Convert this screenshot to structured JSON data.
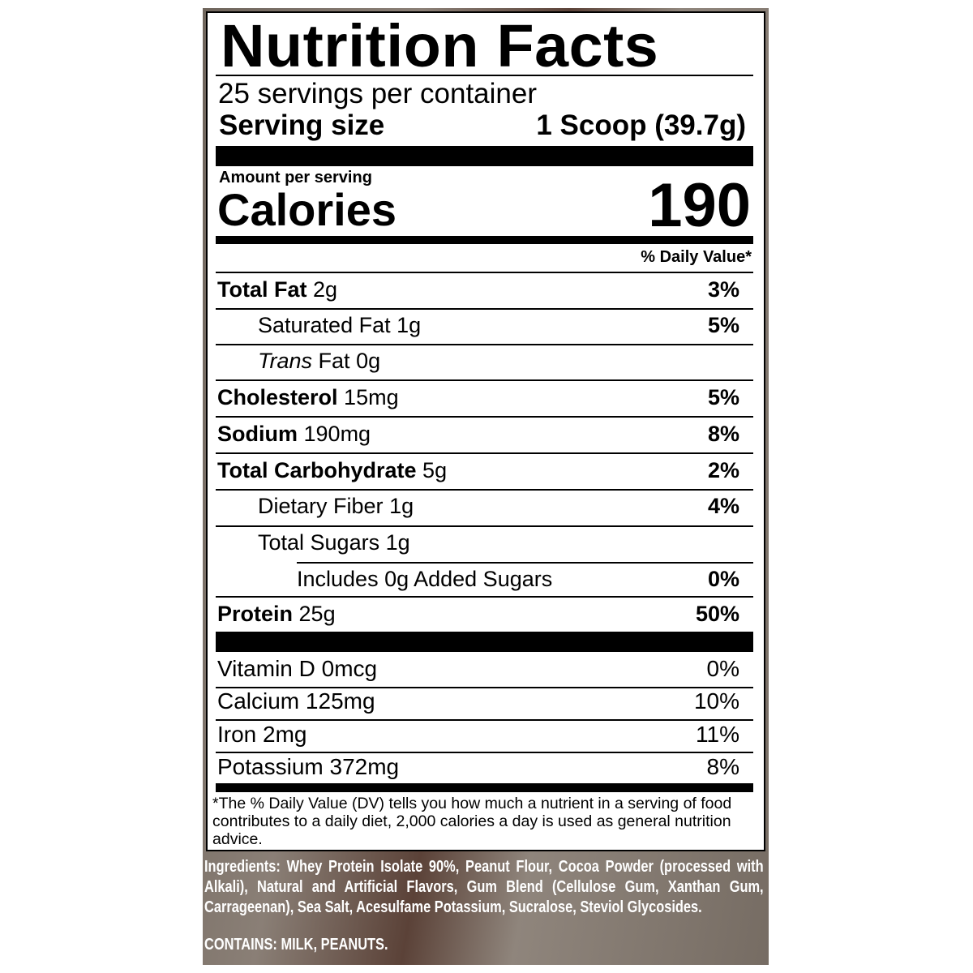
{
  "title": "Nutrition Facts",
  "servings_per_container": "25 servings per container",
  "serving_size_label": "Serving size",
  "serving_size_value": "1 Scoop (39.7g)",
  "amount_per_serving": "Amount per serving",
  "calories_label": "Calories",
  "calories_value": "190",
  "daily_value_header": "% Daily Value*",
  "nutrients": [
    {
      "name": "Total Fat",
      "amount": "2g",
      "dv": "3%"
    },
    {
      "name": "Saturated Fat",
      "amount": "1g",
      "dv": "5%"
    },
    {
      "name_italic": "Trans",
      "name": "Fat",
      "amount": "0g",
      "dv": ""
    },
    {
      "name": "Cholesterol",
      "amount": "15mg",
      "dv": "5%"
    },
    {
      "name": "Sodium",
      "amount": "190mg",
      "dv": "8%"
    },
    {
      "name": "Total Carbohydrate",
      "amount": "5g",
      "dv": "2%"
    },
    {
      "name": "Dietary Fiber",
      "amount": "1g",
      "dv": "4%"
    },
    {
      "name": "Total Sugars",
      "amount": "1g",
      "dv": ""
    },
    {
      "name": "Includes 0g Added Sugars",
      "amount": "",
      "dv": "0%"
    },
    {
      "name": "Protein",
      "amount": "25g",
      "dv": "50%"
    }
  ],
  "vitamins": [
    {
      "name": "Vitamin D",
      "amount": "0mcg",
      "dv": "0%"
    },
    {
      "name": "Calcium",
      "amount": "125mg",
      "dv": "10%"
    },
    {
      "name": "Iron",
      "amount": "2mg",
      "dv": "11%"
    },
    {
      "name": "Potassium",
      "amount": "372mg",
      "dv": "8%"
    }
  ],
  "footnote": "*The % Daily Value (DV) tells you how much a nutrient in a serving of food contributes to a daily diet, 2,000 calories a day is used as general nutrition advice.",
  "ingredients": "Ingredients: Whey Protein Isolate 90%, Peanut Flour, Cocoa Powder (processed with Alkali), Natural and Artificial Flavors, Gum Blend (Cellulose Gum, Xanthan Gum, Carrageenan), Sea Salt, Acesulfame Potassium, Sucralose, Steviol Glycosides.",
  "contains": "CONTAINS: MILK, PEANUTS."
}
